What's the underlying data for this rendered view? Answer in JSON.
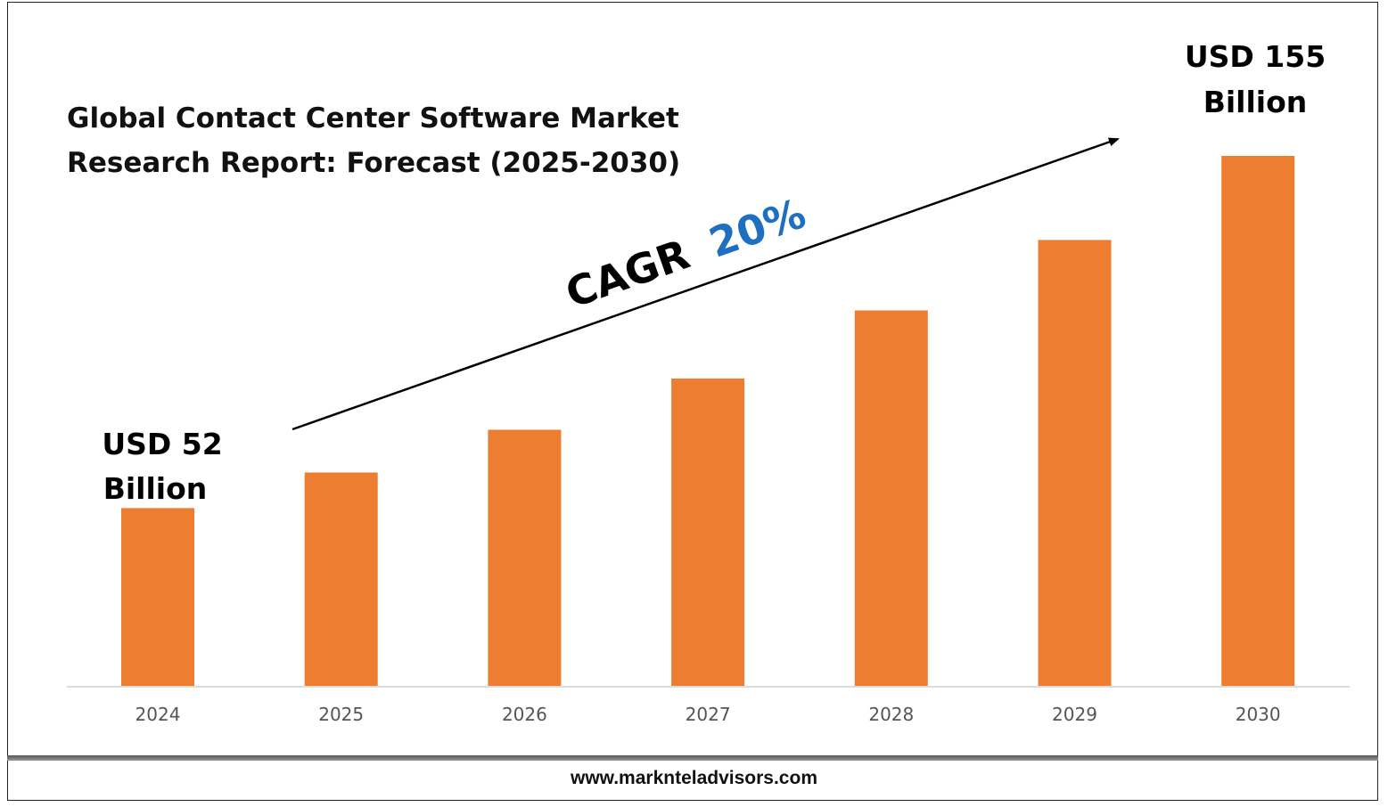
{
  "chart_data": {
    "type": "bar",
    "title_lines": [
      "Global Contact Center Software Market",
      "Research Report: Forecast (2025-2030)"
    ],
    "categories": [
      "2024",
      "2025",
      "2026",
      "2027",
      "2028",
      "2029",
      "2030"
    ],
    "values": [
      52,
      62.4,
      74.9,
      89.9,
      109.8,
      130.4,
      155
    ],
    "ylim": [
      0,
      160
    ],
    "grid": false,
    "bar_color": "#ed7d31",
    "annotations": {
      "start_lines": [
        "USD 52",
        "Billion"
      ],
      "end_lines": [
        "USD 155",
        "Billion"
      ],
      "cagr_label": "CAGR",
      "cagr_value": "20%",
      "cagr_color": "#1f6fc0"
    }
  },
  "footer": {
    "website": "www.marknteladvisors.com"
  }
}
